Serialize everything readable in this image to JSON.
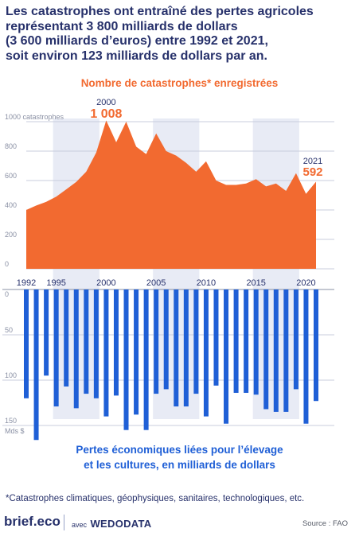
{
  "headline": [
    "Les catastrophes ont entraîné des pertes agricoles",
    "représentant 3 800 milliards de dollars",
    "(3 600 milliards d’euros) entre 1992 et 2021,",
    "soit environ 123 milliards de dollars par an."
  ],
  "top_chart_title": "Nombre de catastrophes* enregistrées",
  "bottom_chart_title": [
    "Pertes économiques liées pour l’élevage",
    "et les cultures, en milliards de dollars"
  ],
  "footnote": "*Catastrophes climatiques, géophysiques, sanitaires, technologiques, etc.",
  "footer": {
    "brand": "brief.eco",
    "avec": "avec",
    "partner": "WEDODATA",
    "source": "Source : FAO"
  },
  "colors": {
    "orange": "#f26a30",
    "blue": "#1f5fd6",
    "navy": "#27316b",
    "band": "#e8ebf5"
  },
  "chart_data": [
    {
      "type": "area",
      "title": "Nombre de catastrophes* enregistrées",
      "x": [
        1992,
        1993,
        1994,
        1995,
        1996,
        1997,
        1998,
        1999,
        2000,
        2001,
        2002,
        2003,
        2004,
        2005,
        2006,
        2007,
        2008,
        2009,
        2010,
        2011,
        2012,
        2013,
        2014,
        2015,
        2016,
        2017,
        2018,
        2019,
        2020,
        2021
      ],
      "values": [
        400,
        430,
        455,
        490,
        540,
        590,
        660,
        790,
        1008,
        860,
        1000,
        830,
        780,
        920,
        800,
        770,
        720,
        660,
        730,
        600,
        570,
        570,
        580,
        610,
        560,
        580,
        530,
        650,
        510,
        592
      ],
      "ylim": [
        0,
        1000
      ],
      "yticks": [
        "0",
        "200",
        "400",
        "600",
        "800",
        "1000 catastrophes"
      ],
      "ytick_values": [
        0,
        200,
        400,
        600,
        800,
        1000
      ],
      "annotations": [
        {
          "year": "2000",
          "value": "1 008",
          "x": 2000,
          "y": 1008
        },
        {
          "year": "2021",
          "value": "592",
          "x": 2021,
          "y": 592
        }
      ],
      "grid": true
    },
    {
      "type": "bar",
      "title": "Pertes économiques liées pour l’élevage et les cultures, en milliards de dollars",
      "x": [
        1992,
        1993,
        1994,
        1995,
        1996,
        1997,
        1998,
        1999,
        2000,
        2001,
        2002,
        2003,
        2004,
        2005,
        2006,
        2007,
        2008,
        2009,
        2010,
        2011,
        2012,
        2013,
        2014,
        2015,
        2016,
        2017,
        2018,
        2019,
        2020,
        2021
      ],
      "values": [
        120,
        166,
        95,
        129,
        107,
        131,
        115,
        120,
        140,
        117,
        155,
        138,
        155,
        115,
        110,
        129,
        129,
        115,
        140,
        106,
        148,
        114,
        114,
        116,
        132,
        135,
        135,
        110,
        148,
        123
      ],
      "ylim": [
        0,
        150
      ],
      "yticks": [
        "0",
        "50",
        "100",
        "150"
      ],
      "ytick_values": [
        0,
        50,
        100,
        150
      ],
      "y_unit": "Mds $",
      "inverted": true,
      "grid": true
    }
  ],
  "year_axis": {
    "labels": [
      "1992",
      "1995",
      "2000",
      "2005",
      "2010",
      "2015",
      "2020"
    ],
    "values": [
      1992,
      1995,
      2000,
      2005,
      2010,
      2015,
      2020
    ]
  },
  "shaded_periods": [
    [
      1995,
      1999
    ],
    [
      2005,
      2009
    ],
    [
      2015,
      2019
    ]
  ]
}
